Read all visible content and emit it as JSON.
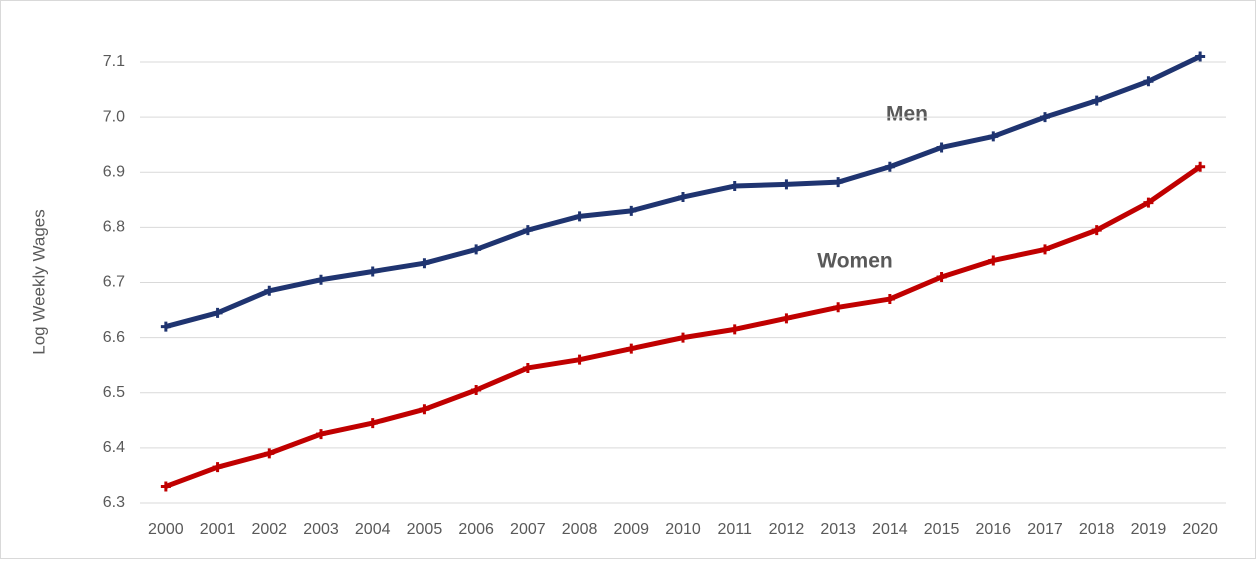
{
  "chart_data": {
    "type": "line",
    "y_label": "Log Weekly Wages",
    "categories": [
      "2000",
      "2001",
      "2002",
      "2003",
      "2004",
      "2005",
      "2006",
      "2007",
      "2008",
      "2009",
      "2010",
      "2011",
      "2012",
      "2013",
      "2014",
      "2015",
      "2016",
      "2017",
      "2018",
      "2019",
      "2020"
    ],
    "series": [
      {
        "name": "Men",
        "color": "#1f3470",
        "values": [
          6.62,
          6.645,
          6.685,
          6.705,
          6.72,
          6.735,
          6.76,
          6.795,
          6.82,
          6.83,
          6.855,
          6.875,
          6.878,
          6.882,
          6.91,
          6.945,
          6.965,
          7.0,
          7.03,
          7.065,
          7.11
        ]
      },
      {
        "name": "Women",
        "color": "#c00000",
        "values": [
          6.33,
          6.365,
          6.39,
          6.425,
          6.445,
          6.47,
          6.505,
          6.545,
          6.56,
          6.58,
          6.6,
          6.615,
          6.635,
          6.655,
          6.67,
          6.71,
          6.74,
          6.76,
          6.795,
          6.845,
          6.91
        ]
      }
    ],
    "ylim": [
      6.3,
      7.1
    ],
    "yticks": [
      6.3,
      6.4,
      6.5,
      6.6,
      6.7,
      6.8,
      6.9,
      {
        "value": 7,
        "label": "7.0"
      },
      7.1
    ],
    "grid": true
  }
}
